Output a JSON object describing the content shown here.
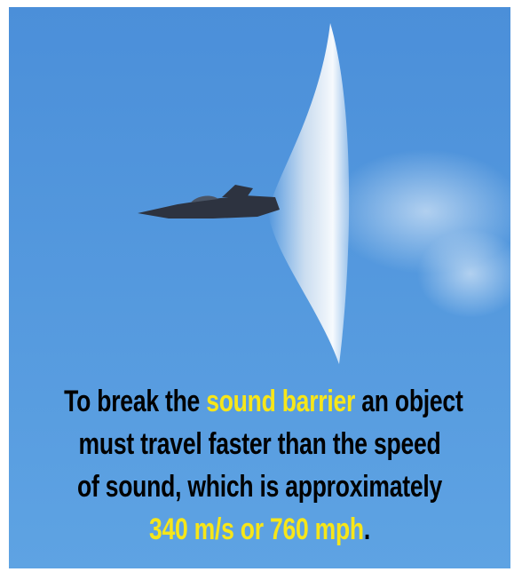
{
  "caption": {
    "lines": [
      [
        {
          "text": "To break the ",
          "highlight": false
        },
        {
          "text": "sound barrier",
          "highlight": true
        },
        {
          "text": " an object",
          "highlight": false
        }
      ],
      [
        {
          "text": "must travel faster than the speed",
          "highlight": false
        }
      ],
      [
        {
          "text": "of sound, which is approximately",
          "highlight": false
        }
      ],
      [
        {
          "text": "340 m/s or 760 mph",
          "highlight": true
        },
        {
          "text": ".",
          "highlight": false
        }
      ]
    ]
  }
}
